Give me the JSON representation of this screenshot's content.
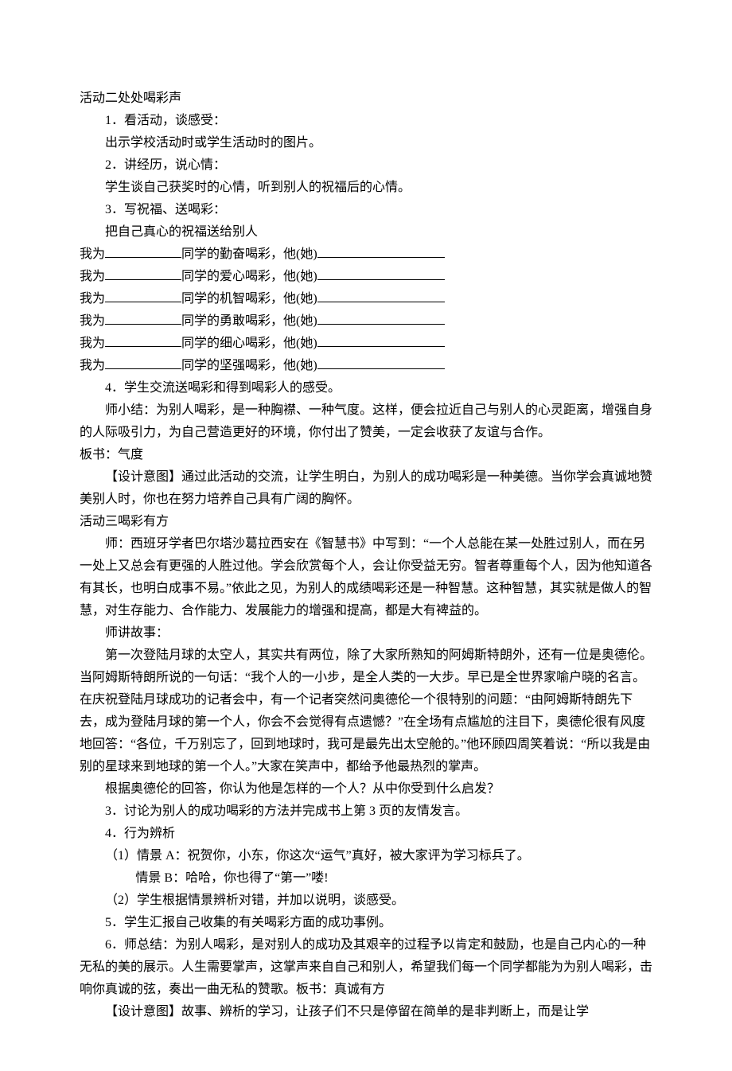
{
  "act2": {
    "title": "活动二处处喝彩声",
    "s1_head": "1．看活动，谈感受：",
    "s1_body": "出示学校活动时或学生活动时的图片。",
    "s2_head": "2．讲经历，说心情：",
    "s2_body": "学生谈自己获奖时的心情，听到别人的祝福后的心情。",
    "s3_head": "3．写祝福、送喝彩：",
    "s3_body": "把自己真心的祝福送给别人",
    "lines": [
      {
        "a": "我为",
        "b": "同学的勤奋喝彩，他(她)"
      },
      {
        "a": "我为",
        "b": "同学的爱心喝彩，他(她)"
      },
      {
        "a": "我为",
        "b": "同学的机智喝彩，他(她)"
      },
      {
        "a": "我为",
        "b": "同学的勇敢喝彩，他(她)"
      },
      {
        "a": "我为",
        "b": "同学的细心喝彩，他(她)"
      },
      {
        "a": "我为",
        "b": "同学的坚强喝彩，他(她)"
      }
    ],
    "s4": "4．学生交流送喝彩和得到喝彩人的感受。",
    "summary": "师小结：为别人喝彩，是一种胸襟、一种气度。这样，便会拉近自己与别人的心灵距离，增强自身的人际吸引力，为自己营造更好的环境，你付出了赞美，一定会收获了友谊与合作。",
    "board": "板书：气度",
    "intent": "【设计意图】通过此活动的交流，让学生明白，为别人的成功喝彩是一种美德。当你学会真诚地赞美别人时，你也在努力培养自己具有广阔的胸怀。"
  },
  "act3": {
    "title": "活动三喝彩有方",
    "p1": "师：西班牙学者巴尔塔沙葛拉西安在《智慧书》中写到：“一个人总能在某一处胜过别人，而在另一处上又总会有更强的人胜过他。学会欣赏每个人，会让你受益无穷。智者尊重每个人，因为他知道各有其长，也明白成事不易。”依此之见，为别人的成绩喝彩还是一种智慧。这种智慧，其实就是做人的智慧，对生存能力、合作能力、发展能力的增强和提高，都是大有裨益的。",
    "p2": "师讲故事：",
    "p3": "第一次登陆月球的太空人，其实共有两位，除了大家所熟知的阿姆斯特朗外，还有一位是奥德伦。当阿姆斯特朗所说的一句话：“我个人的一小步，是全人类的一大步。早已是全世界家喻户晓的名言。在庆祝登陆月球成功的记者会中，有一个记者突然问奥德伦一个很特别的问题：“由阿姆斯特朗先下去，成为登陆月球的第一个人，你会不会觉得有点遗憾？”在全场有点尴尬的注目下，奥德伦很有风度地回答：“各位，千万别忘了，回到地球时，我可是最先出太空舱的。”他环顾四周笑着说：“所以我是由别的星球来到地球的第一个人。”大家在笑声中，都给予他最热烈的掌声。",
    "p4": "根据奥德伦的回答，你认为他是怎样的一个人？从中你受到什么启发？",
    "p5": "3．讨论为别人的成功喝彩的方法并完成书上第 3 页的友情发言。",
    "p6": "4．行为辨析",
    "p7": "（1）情景 A：祝贺你，小东，你这次“运气”真好，被大家评为学习标兵了。",
    "p8": "情景 B：哈哈，你也得了“第一”喽!",
    "p9": "（2）学生根据情景辨析对错，并加以说明，谈感受。",
    "p10": "5．学生汇报自己收集的有关喝彩方面的成功事例。",
    "p11": "6．师总结：为别人喝彩，是对别人的成功及其艰辛的过程予以肯定和鼓励，也是自己内心的一种无私的美的展示。人生需要掌声，这掌声来自自己和别人，希望我们每一个同学都能为为别人喝彩，击响你真诚的弦，奏出一曲无私的赞歌。板书：真诚有方",
    "p12": "【设计意图】故事、辨析的学习，让孩子们不只是停留在简单的是非判断上，而是让学"
  }
}
